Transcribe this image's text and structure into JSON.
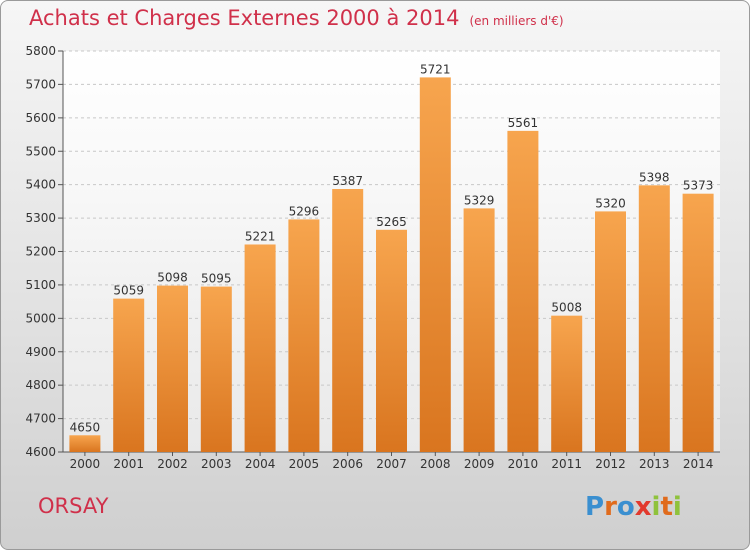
{
  "chart_data": {
    "type": "bar",
    "title": "Achats et Charges Externes 2000 à 2014",
    "subtitle": "(en milliers d'€)",
    "categories": [
      "2000",
      "2001",
      "2002",
      "2003",
      "2004",
      "2005",
      "2006",
      "2007",
      "2008",
      "2009",
      "2010",
      "2011",
      "2012",
      "2013",
      "2014"
    ],
    "values": [
      4650,
      5059,
      5098,
      5095,
      5221,
      5296,
      5387,
      5265,
      5721,
      5329,
      5561,
      5008,
      5320,
      5398,
      5373
    ],
    "ylim": [
      4600,
      5800
    ],
    "yticks": [
      4600,
      4700,
      4800,
      4900,
      5000,
      5100,
      5200,
      5300,
      5400,
      5500,
      5600,
      5700,
      5800
    ],
    "grid": true,
    "xlabel": "",
    "ylabel": ""
  },
  "footer": {
    "city": "ORSAY",
    "logo": "Proxiti"
  },
  "colors": {
    "title": "#d0304a",
    "bar_light": "#f7a54e",
    "bar_dark": "#d9751f",
    "logo_letters": [
      "#3a8fd0",
      "#e06b1c",
      "#3a8fd0",
      "#e23a2e",
      "#8fc23c",
      "#e06b1c",
      "#8fc23c"
    ]
  }
}
